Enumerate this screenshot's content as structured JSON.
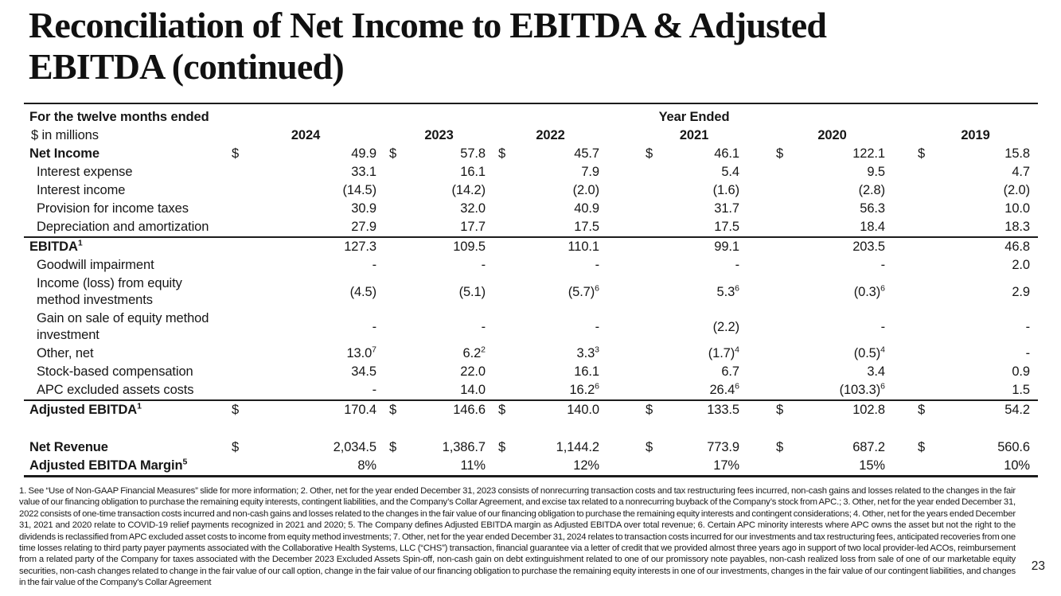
{
  "title_line1": "Reconciliation of Net Income to EBITDA & Adjusted",
  "title_line2": "EBITDA (continued)",
  "table": {
    "period_label": "For the twelve months ended",
    "units_label": "$ in millions",
    "year_ended_label": "Year Ended",
    "years": [
      "2024",
      "2023",
      "2022",
      "2021",
      "2020",
      "2019"
    ],
    "rows": [
      {
        "label": "Net Income",
        "emphasis": true,
        "dollar": true,
        "values": [
          "49.9",
          "57.8",
          "45.7",
          "46.1",
          "122.1",
          "15.8"
        ]
      },
      {
        "label": "Interest expense",
        "indent": true,
        "values": [
          "33.1",
          "16.1",
          "7.9",
          "5.4",
          "9.5",
          "4.7"
        ]
      },
      {
        "label": "Interest income",
        "indent": true,
        "values": [
          "(14.5)",
          "(14.2)",
          "(2.0)",
          "(1.6)",
          "(2.8)",
          "(2.0)"
        ]
      },
      {
        "label": "Provision for income taxes",
        "indent": true,
        "values": [
          "30.9",
          "32.0",
          "40.9",
          "31.7",
          "56.3",
          "10.0"
        ]
      },
      {
        "label": "Depreciation and amortization",
        "indent": true,
        "values": [
          "27.9",
          "17.7",
          "17.5",
          "17.5",
          "18.4",
          "18.3"
        ]
      },
      {
        "label": "EBITDA^1",
        "emphasis": true,
        "rule_top": true,
        "values": [
          "127.3",
          "109.5",
          "110.1",
          "99.1",
          "203.5",
          "46.8"
        ]
      },
      {
        "label": "Goodwill impairment",
        "indent": true,
        "values": [
          "-",
          "-",
          "-",
          "-",
          "-",
          "2.0"
        ]
      },
      {
        "label": "Income (loss) from equity method investments",
        "indent": true,
        "values": [
          "(4.5)",
          "(5.1)",
          "(5.7)^6",
          "5.3^6",
          "(0.3)^6",
          "2.9"
        ]
      },
      {
        "label": "Gain on sale of equity method investment",
        "indent": true,
        "values": [
          "-",
          "-",
          "-",
          "(2.2)",
          "-",
          "-"
        ]
      },
      {
        "label": "Other, net",
        "indent": true,
        "values": [
          "13.0^7",
          "6.2^2",
          "3.3^3",
          "(1.7)^4",
          "(0.5)^4",
          "-"
        ]
      },
      {
        "label": "Stock-based compensation",
        "indent": true,
        "values": [
          "34.5",
          "22.0",
          "16.1",
          "6.7",
          "3.4",
          "0.9"
        ]
      },
      {
        "label": "APC excluded assets costs",
        "indent": true,
        "values": [
          "-",
          "14.0",
          "16.2^6",
          "26.4^6",
          "(103.3)^6",
          "1.5"
        ]
      },
      {
        "label": "Adjusted EBITDA^1",
        "emphasis": true,
        "dollar": true,
        "rule_top": true,
        "values": [
          "170.4",
          "146.6",
          "140.0",
          "133.5",
          "102.8",
          "54.2"
        ]
      },
      {
        "spacer": true
      },
      {
        "label": "Net Revenue",
        "emphasis": true,
        "dollar": true,
        "values": [
          "2,034.5",
          "1,386.7",
          "1,144.2",
          "773.9",
          "687.2",
          "560.6"
        ]
      },
      {
        "label": "Adjusted EBITDA Margin^5",
        "emphasis": true,
        "rule_bottom": true,
        "values": [
          "8%",
          "11%",
          "12%",
          "17%",
          "15%",
          "10%"
        ]
      }
    ]
  },
  "footnote": "1. See “Use of Non-GAAP Financial Measures” slide for more information; 2. Other, net for the year ended December 31, 2023 consists of nonrecurring transaction costs and tax restructuring fees incurred, non-cash gains and losses related to the changes in the fair value of our financing obligation to purchase the remaining equity interests, contingent liabilities, and the Company’s Collar Agreement, and excise tax related to a nonrecurring buyback of the Company’s stock from APC.; 3. Other, net for the year ended December 31, 2022 consists of one-time transaction costs incurred and non-cash gains and losses related to the changes in the fair value of our financing obligation to purchase the remaining equity interests and contingent considerations; 4. Other, net for the years ended December 31, 2021 and 2020 relate to COVID-19 relief payments recognized in 2021 and 2020; 5. The Company defines Adjusted EBITDA margin as Adjusted EBITDA over total revenue; 6. Certain APC minority interests where APC owns the asset but not the right to the dividends is reclassified from APC excluded asset costs to income from equity method investments; 7. Other, net for the year ended December 31, 2024 relates to transaction costs incurred for our investments and tax restructuring fees, anticipated recoveries from one time losses relating to third party payer payments associated with the Collaborative Health Systems, LLC (“CHS”) transaction, financial guarantee via a letter of credit that we provided almost three years ago in support of two local provider-led ACOs, reimbursement from a related party of the Company for taxes associated with the December 2023 Excluded Assets Spin-off, non-cash gain on debt extinguishment related to one of our promissory note payables, non-cash realized loss from sale of one of our marketable equity securities, non-cash changes related to change in the fair value of our call option, change in the fair value of our financing obligation to purchase the remaining equity interests in one of our investments, changes in the fair value of our contingent liabilities, and changes in the fair value of the Company’s Collar Agreement",
  "page_number": "23"
}
